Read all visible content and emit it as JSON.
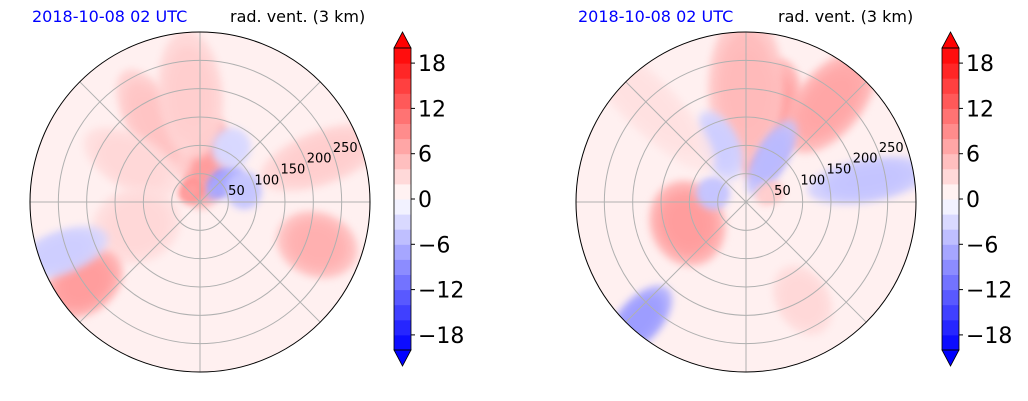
{
  "colors": {
    "title_time": "#0000ff",
    "title_field": "#000000",
    "grid": "#b0b0b0",
    "background": "#fff0f0"
  },
  "chart_data": [
    {
      "type": "polar-filled-contour",
      "title_left": "2018-10-08 02 UTC",
      "title_right": "rad. vent. (3 km)",
      "radial_ticks": [
        "50",
        "100",
        "150",
        "200",
        "250"
      ],
      "radial_tick_values": [
        50,
        100,
        150,
        200,
        250
      ],
      "rlim": [
        0,
        300
      ],
      "grid": true,
      "colorbar": {
        "ticks": [
          "−18",
          "−12",
          "−6",
          "0",
          "6",
          "12",
          "18"
        ],
        "tick_values": [
          -18,
          -12,
          -6,
          0,
          6,
          12,
          18
        ],
        "range": [
          -20,
          20
        ],
        "extend": "both",
        "levels": 20,
        "cmap": "bwr",
        "placement": "right"
      },
      "blobs": [
        {
          "r": 70,
          "theta": 80,
          "sr": 22,
          "st": 35,
          "v": 20
        },
        {
          "r": 55,
          "theta": 40,
          "sr": 12,
          "st": 22,
          "v": -18
        },
        {
          "r": 80,
          "theta": 15,
          "sr": 18,
          "st": 12,
          "v": -12
        },
        {
          "r": 25,
          "theta": 130,
          "sr": 12,
          "st": 25,
          "v": 20
        },
        {
          "r": 160,
          "theta": 120,
          "sr": 25,
          "st": 20,
          "v": 12
        },
        {
          "r": 190,
          "theta": 95,
          "sr": 30,
          "st": 18,
          "v": 10
        },
        {
          "r": 140,
          "theta": 150,
          "sr": 25,
          "st": 20,
          "v": 8
        },
        {
          "r": 230,
          "theta": 20,
          "sr": 25,
          "st": 15,
          "v": 10
        },
        {
          "r": 220,
          "theta": -20,
          "sr": 30,
          "st": 10,
          "v": 16
        },
        {
          "r": 120,
          "theta": 200,
          "sr": 35,
          "st": 20,
          "v": 8
        },
        {
          "r": 250,
          "theta": 215,
          "sr": 28,
          "st": 9,
          "v": 20
        },
        {
          "r": 260,
          "theta": 200,
          "sr": 20,
          "st": 10,
          "v": -10
        },
        {
          "r": 110,
          "theta": 60,
          "sr": 18,
          "st": 10,
          "v": -8
        }
      ]
    },
    {
      "type": "polar-filled-contour",
      "title_left": "2018-10-08 02 UTC",
      "title_right": "rad. vent. (3 km)",
      "radial_ticks": [
        "50",
        "100",
        "150",
        "200",
        "250"
      ],
      "radial_tick_values": [
        50,
        100,
        150,
        200,
        250
      ],
      "rlim": [
        0,
        300
      ],
      "grid": true,
      "colorbar": {
        "ticks": [
          "−18",
          "−12",
          "−6",
          "0",
          "6",
          "12",
          "18"
        ],
        "tick_values": [
          -18,
          -12,
          -6,
          0,
          6,
          12,
          18
        ],
        "range": [
          -20,
          20
        ],
        "extend": "both",
        "levels": 20,
        "cmap": "bwr",
        "placement": "right"
      },
      "blobs": [
        {
          "r": 150,
          "theta": 75,
          "sr": 28,
          "st": 22,
          "v": 20
        },
        {
          "r": 200,
          "theta": 90,
          "sr": 35,
          "st": 20,
          "v": 14
        },
        {
          "r": 230,
          "theta": 50,
          "sr": 30,
          "st": 14,
          "v": 18
        },
        {
          "r": 90,
          "theta": 60,
          "sr": 15,
          "st": 25,
          "v": -14
        },
        {
          "r": 110,
          "theta": 115,
          "sr": 18,
          "st": 18,
          "v": -10
        },
        {
          "r": 110,
          "theta": 200,
          "sr": 40,
          "st": 18,
          "v": 20
        },
        {
          "r": 60,
          "theta": 165,
          "sr": 15,
          "st": 15,
          "v": -12
        },
        {
          "r": 45,
          "theta": 20,
          "sr": 10,
          "st": 18,
          "v": 10
        },
        {
          "r": 200,
          "theta": 300,
          "sr": 25,
          "st": 10,
          "v": 8
        },
        {
          "r": 280,
          "theta": 228,
          "sr": 20,
          "st": 8,
          "v": -20
        },
        {
          "r": 220,
          "theta": 10,
          "sr": 20,
          "st": 15,
          "v": -12
        },
        {
          "r": 250,
          "theta": 135,
          "sr": 25,
          "st": 20,
          "v": 6
        }
      ]
    }
  ]
}
